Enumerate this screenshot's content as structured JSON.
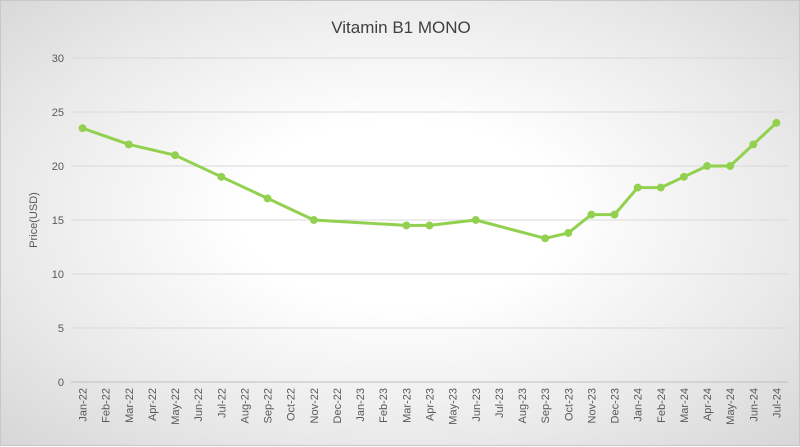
{
  "chart_data": {
    "type": "line",
    "title": "Vitamin B1 MONO",
    "xlabel": "",
    "ylabel": "Price(USD)",
    "ylim": [
      0,
      30
    ],
    "yticks": [
      0,
      5,
      10,
      15,
      20,
      25,
      30
    ],
    "grid": true,
    "legend": "none",
    "categories": [
      "Jan-22",
      "Feb-22",
      "Mar-22",
      "Apr-22",
      "May-22",
      "Jun-22",
      "Jul-22",
      "Aug-22",
      "Sep-22",
      "Oct-22",
      "Nov-22",
      "Dec-22",
      "Jan-23",
      "Feb-23",
      "Mar-23",
      "Apr-23",
      "May-23",
      "Jun-23",
      "Jul-23",
      "Aug-23",
      "Sep-23",
      "Oct-23",
      "Nov-23",
      "Dec-23",
      "Jan-24",
      "Feb-24",
      "Mar-24",
      "Apr-24",
      "May-24",
      "Jun-24",
      "Jul-24"
    ],
    "x": [
      "Jan-22",
      "Mar-22",
      "May-22",
      "Jul-22",
      "Sep-22",
      "Nov-22",
      "Mar-23",
      "Apr-23",
      "Jun-23",
      "Sep-23",
      "Oct-23",
      "Nov-23",
      "Dec-23",
      "Jan-24",
      "Feb-24",
      "Mar-24",
      "Apr-24",
      "May-24",
      "Jun-24",
      "Jul-24"
    ],
    "series": [
      {
        "name": "Price",
        "color": "#92d050",
        "marker_color": "#92d050",
        "values": [
          23.5,
          22,
          21,
          19,
          17,
          15,
          14.5,
          14.5,
          15,
          13.3,
          13.8,
          15.5,
          15.5,
          18,
          18,
          19,
          20,
          20,
          22,
          24
        ]
      }
    ]
  }
}
